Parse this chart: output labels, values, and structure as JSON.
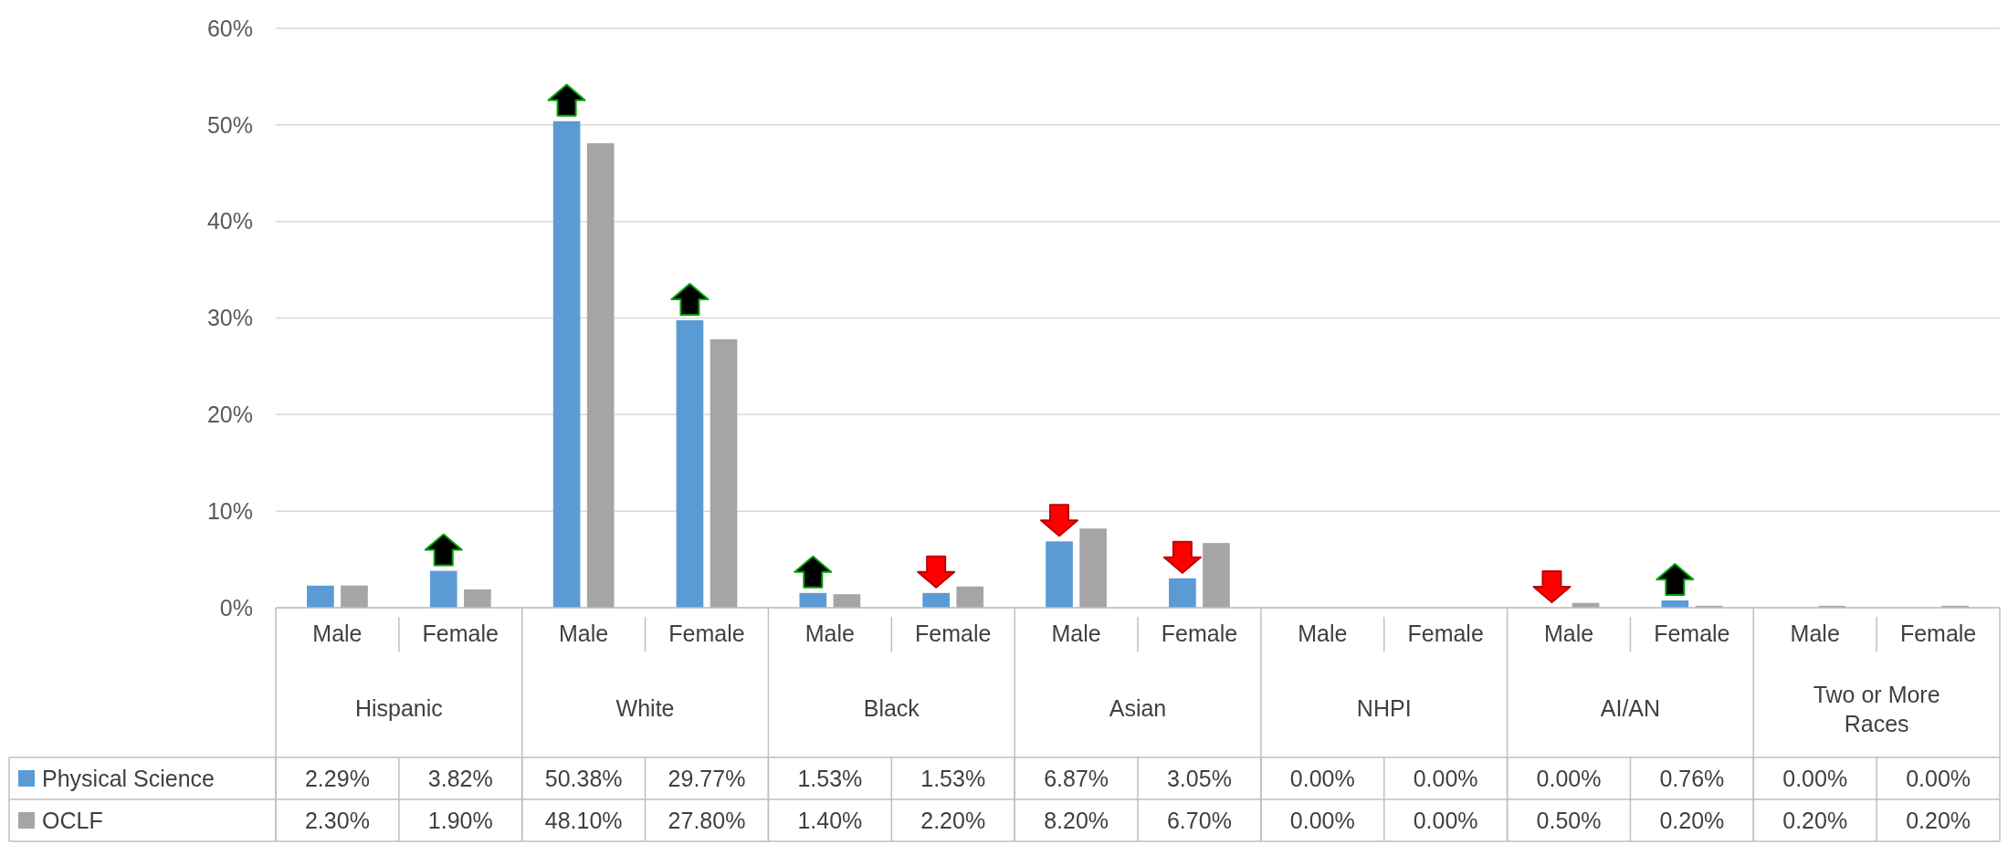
{
  "chart_data": {
    "type": "bar",
    "categories": [
      "Male",
      "Female",
      "Male",
      "Female",
      "Male",
      "Female",
      "Male",
      "Female",
      "Male",
      "Female",
      "Male",
      "Female",
      "Male",
      "Female"
    ],
    "annotations": [
      "Hispanic",
      "White",
      "Black",
      "Asian",
      "NHPI",
      "AI/AN",
      "Two or More Races"
    ],
    "series": [
      {
        "name": "Physical Science",
        "color": "#5b9bd5",
        "values": [
          2.29,
          3.82,
          50.38,
          29.77,
          1.53,
          1.53,
          6.87,
          3.05,
          0,
          0,
          0,
          0.76,
          0,
          0
        ],
        "value_labels": [
          "2.29%",
          "3.82%",
          "50.38%",
          "29.77%",
          "1.53%",
          "1.53%",
          "6.87%",
          "3.05%",
          "0.00%",
          "0.00%",
          "0.00%",
          "0.76%",
          "0.00%",
          "0.00%"
        ]
      },
      {
        "name": "OCLF",
        "color": "#a5a5a5",
        "values": [
          2.3,
          1.9,
          48.1,
          27.8,
          1.4,
          2.2,
          8.2,
          6.7,
          0,
          0,
          0.5,
          0.2,
          0.2,
          0.2
        ],
        "value_labels": [
          "2.30%",
          "1.90%",
          "48.10%",
          "27.80%",
          "1.40%",
          "2.20%",
          "8.20%",
          "6.70%",
          "0.00%",
          "0.00%",
          "0.50%",
          "0.20%",
          "0.20%",
          "0.20%"
        ]
      }
    ],
    "ylim": [
      0,
      60
    ],
    "yticks": [
      {
        "value": 0,
        "label": "0%"
      },
      {
        "value": 10,
        "label": "10%"
      },
      {
        "value": 20,
        "label": "20%"
      },
      {
        "value": 30,
        "label": "30%"
      },
      {
        "value": 40,
        "label": "40%"
      },
      {
        "value": 50,
        "label": "50%"
      },
      {
        "value": 60,
        "label": "60%"
      }
    ],
    "grid": "y",
    "legend": "bottom"
  }
}
